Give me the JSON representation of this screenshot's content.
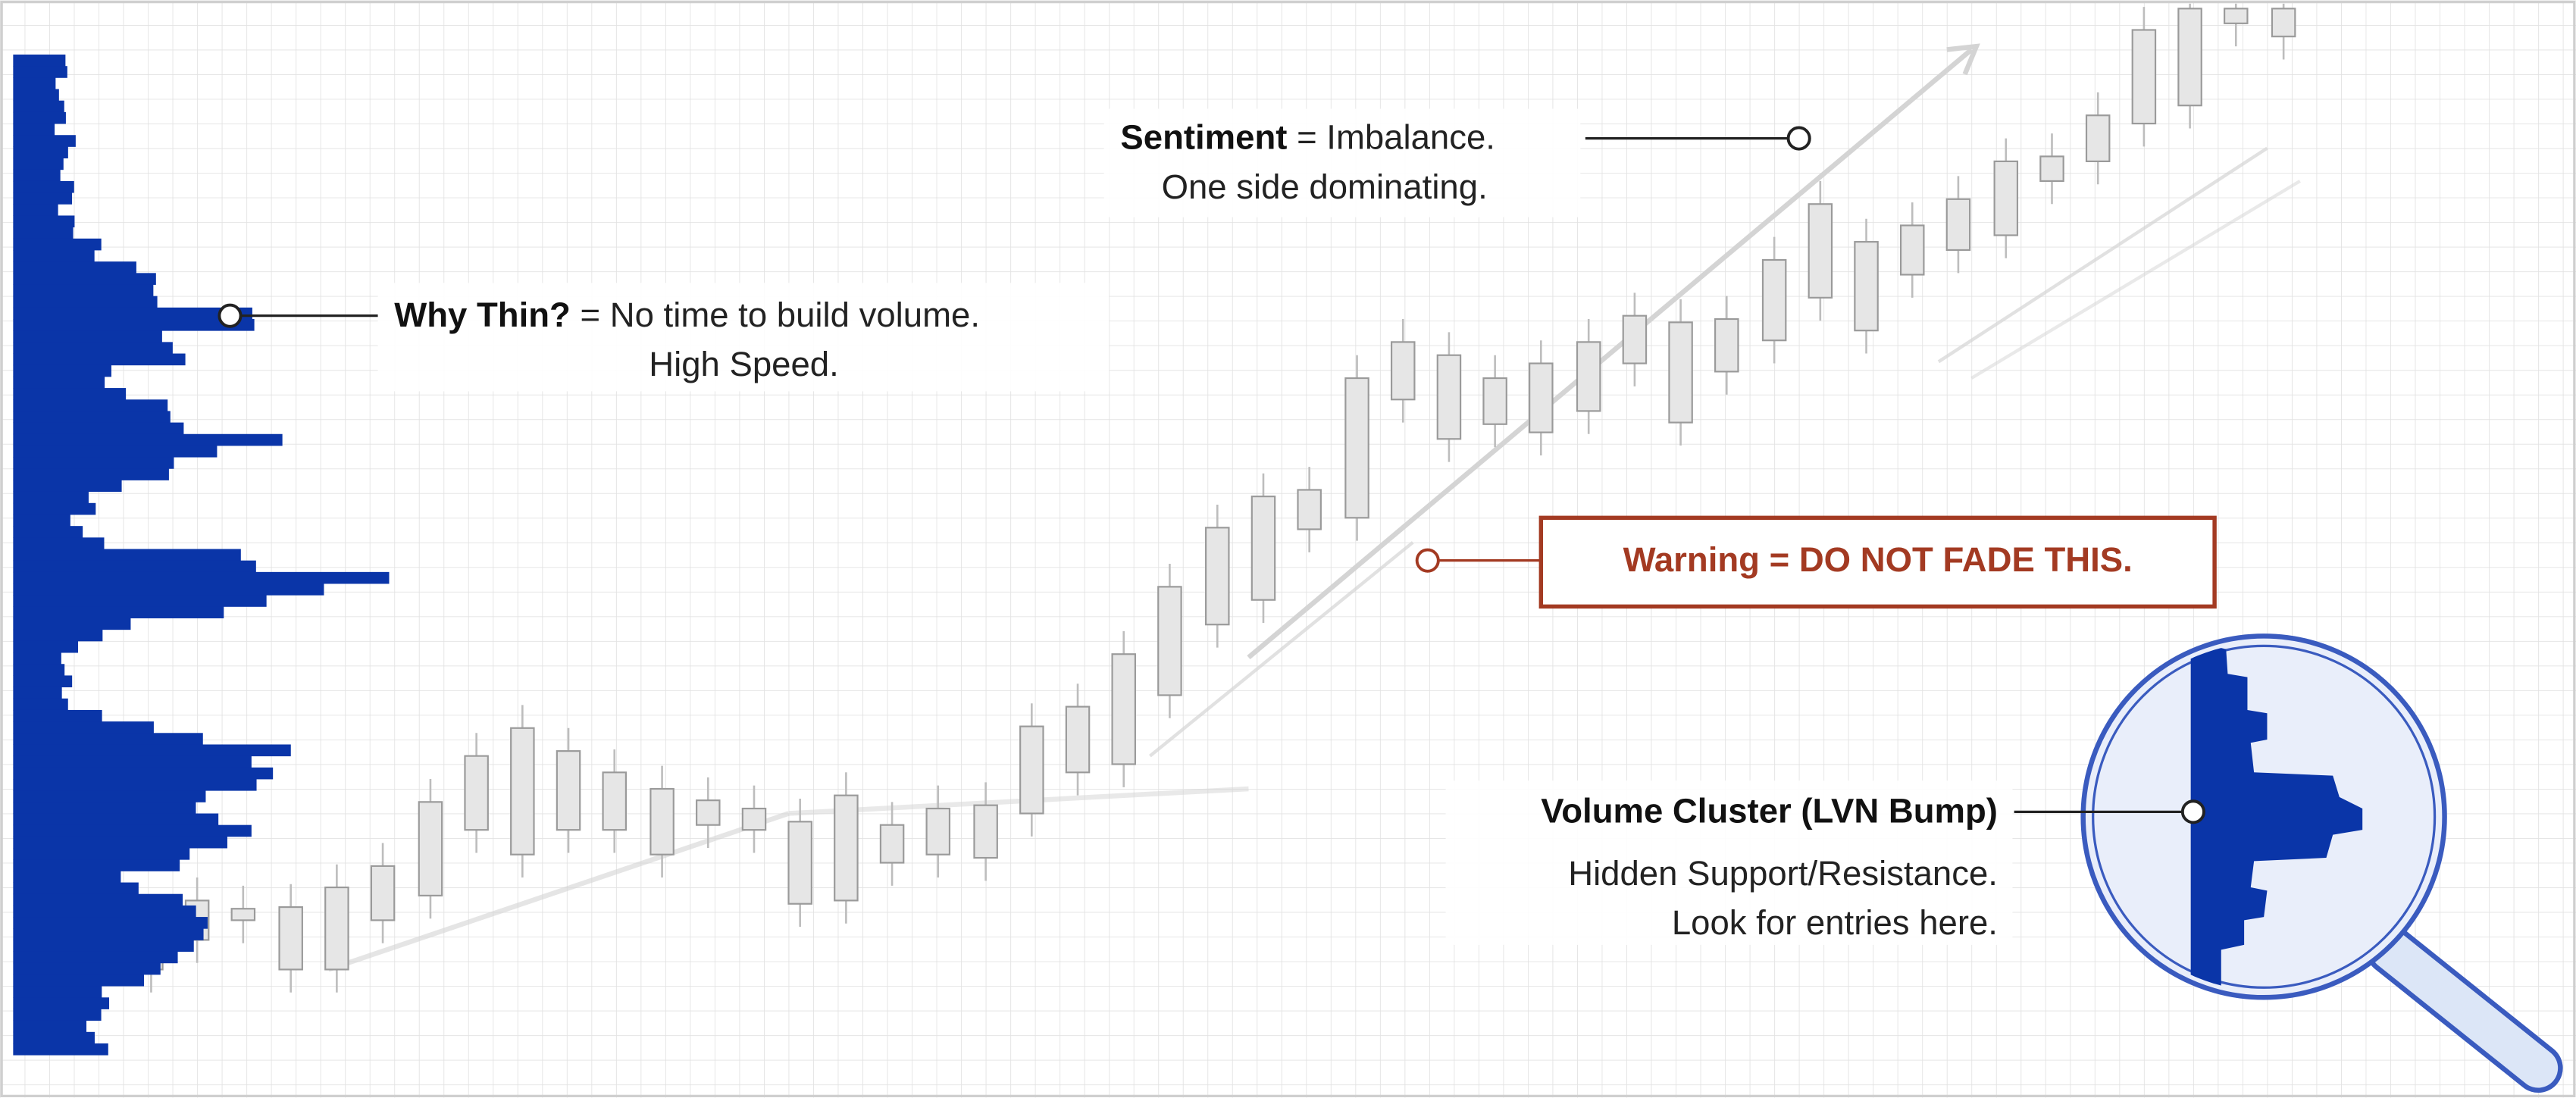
{
  "annotations": [
    {
      "label": "Why Thin?",
      "lines": [
        "= No time to build volume.",
        "High Speed."
      ]
    },
    {
      "label": "Sentiment",
      "lines": [
        "= Imbalance.",
        "One side dominating."
      ]
    },
    {
      "label": "Warning = DO NOT FADE THIS."
    },
    {
      "label": "Volume Cluster (LVN Bump)",
      "lines": [
        "Hidden Support/Resistance.",
        "Look for entries here."
      ]
    }
  ]
}
